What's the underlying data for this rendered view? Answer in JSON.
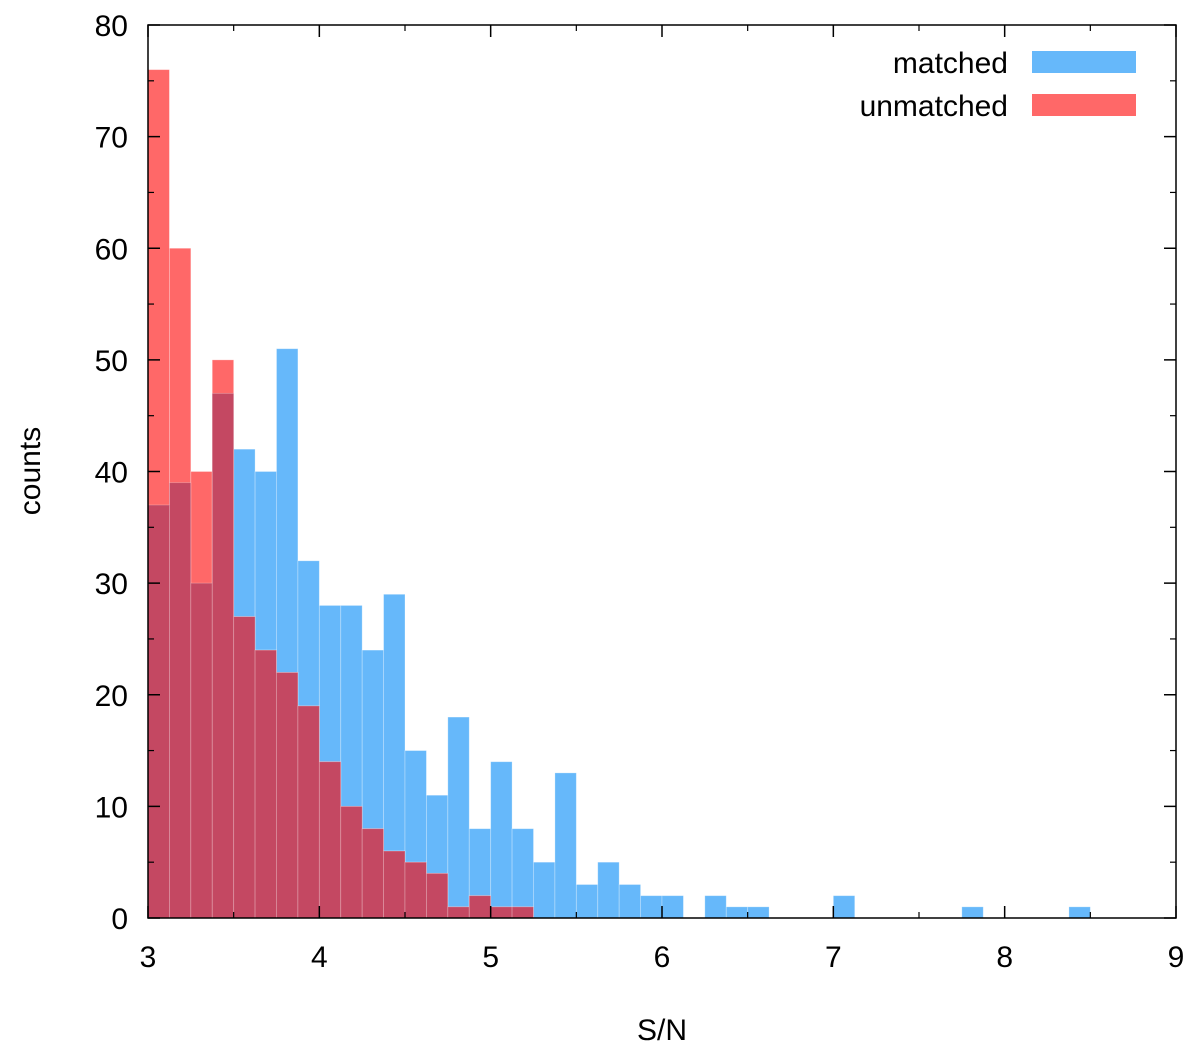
{
  "chart_data": {
    "type": "bar",
    "subtype": "overlapping-histogram",
    "title": "",
    "xlabel": "S/N",
    "ylabel": "counts",
    "xlim": [
      3,
      9
    ],
    "ylim": [
      0,
      80
    ],
    "xticks": [
      3,
      4,
      5,
      6,
      7,
      8,
      9
    ],
    "yticks": [
      0,
      10,
      20,
      30,
      40,
      50,
      60,
      70,
      80
    ],
    "bin_width": 0.125,
    "grid": false,
    "legend_position": "top-right",
    "overlap_color": "#c44862",
    "series": [
      {
        "name": "matched",
        "color": "#66b8fa",
        "bins": [
          {
            "x": 3.0,
            "count": 37
          },
          {
            "x": 3.125,
            "count": 39
          },
          {
            "x": 3.25,
            "count": 30
          },
          {
            "x": 3.375,
            "count": 47
          },
          {
            "x": 3.5,
            "count": 42
          },
          {
            "x": 3.625,
            "count": 40
          },
          {
            "x": 3.75,
            "count": 51
          },
          {
            "x": 3.875,
            "count": 32
          },
          {
            "x": 4.0,
            "count": 28
          },
          {
            "x": 4.125,
            "count": 28
          },
          {
            "x": 4.25,
            "count": 24
          },
          {
            "x": 4.375,
            "count": 29
          },
          {
            "x": 4.5,
            "count": 15
          },
          {
            "x": 4.625,
            "count": 11
          },
          {
            "x": 4.75,
            "count": 18
          },
          {
            "x": 4.875,
            "count": 8
          },
          {
            "x": 5.0,
            "count": 14
          },
          {
            "x": 5.125,
            "count": 8
          },
          {
            "x": 5.25,
            "count": 5
          },
          {
            "x": 5.375,
            "count": 13
          },
          {
            "x": 5.5,
            "count": 3
          },
          {
            "x": 5.625,
            "count": 5
          },
          {
            "x": 5.75,
            "count": 3
          },
          {
            "x": 5.875,
            "count": 2
          },
          {
            "x": 6.0,
            "count": 2
          },
          {
            "x": 6.25,
            "count": 2
          },
          {
            "x": 6.375,
            "count": 1
          },
          {
            "x": 6.5,
            "count": 1
          },
          {
            "x": 7.0,
            "count": 2
          },
          {
            "x": 7.75,
            "count": 1
          },
          {
            "x": 8.375,
            "count": 1
          }
        ]
      },
      {
        "name": "unmatched",
        "color": "#ff6868",
        "bins": [
          {
            "x": 3.0,
            "count": 76
          },
          {
            "x": 3.125,
            "count": 60
          },
          {
            "x": 3.25,
            "count": 40
          },
          {
            "x": 3.375,
            "count": 50
          },
          {
            "x": 3.5,
            "count": 27
          },
          {
            "x": 3.625,
            "count": 24
          },
          {
            "x": 3.75,
            "count": 22
          },
          {
            "x": 3.875,
            "count": 19
          },
          {
            "x": 4.0,
            "count": 14
          },
          {
            "x": 4.125,
            "count": 10
          },
          {
            "x": 4.25,
            "count": 8
          },
          {
            "x": 4.375,
            "count": 6
          },
          {
            "x": 4.5,
            "count": 5
          },
          {
            "x": 4.625,
            "count": 4
          },
          {
            "x": 4.75,
            "count": 1
          },
          {
            "x": 4.875,
            "count": 2
          },
          {
            "x": 5.0,
            "count": 1
          },
          {
            "x": 5.125,
            "count": 1
          }
        ]
      }
    ]
  }
}
